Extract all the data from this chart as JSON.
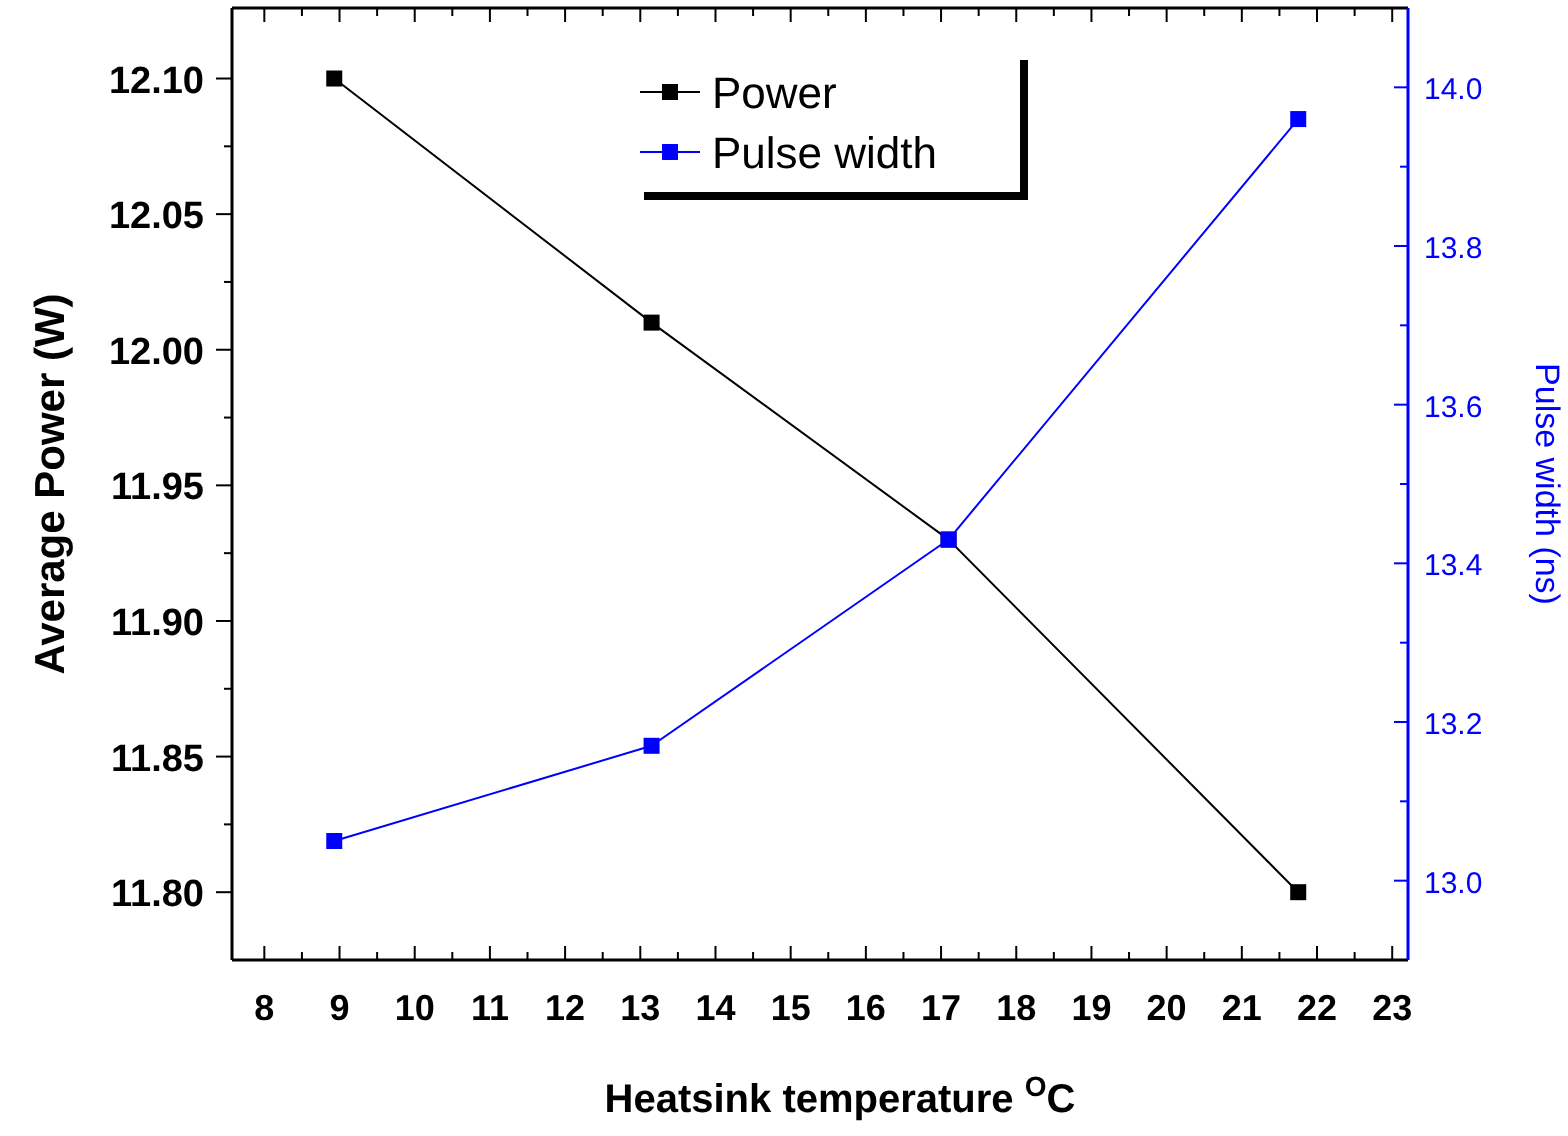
{
  "chart_data": {
    "type": "line",
    "xlabel": "Heatsink temperature $^{O}$C",
    "ylabel": "Average Power (W)",
    "y2label": "Pulse width (ns)",
    "x": [
      8.93,
      13.15,
      17.1,
      21.75
    ],
    "series": [
      {
        "name": "Power",
        "color": "#000000",
        "values": [
          12.1,
          12.01,
          11.93,
          11.8
        ]
      },
      {
        "name": "Pulse width",
        "color": "#0000ff",
        "axis": "y2",
        "values": [
          13.05,
          13.17,
          13.43,
          13.96
        ]
      }
    ],
    "xlim": [
      7.57,
      23.21
    ],
    "xticks": [
      8,
      {
        "value": 8.5,
        "label": null
      },
      9,
      {
        "value": 9.5,
        "label": null
      },
      10,
      {
        "value": 10.5,
        "label": null
      },
      11,
      {
        "value": 11.5,
        "label": null
      },
      12,
      {
        "value": 12.5,
        "label": null
      },
      13,
      {
        "value": 13.5,
        "label": null
      },
      14,
      {
        "value": 14.5,
        "label": null
      },
      15,
      {
        "value": 15.5,
        "label": null
      },
      16,
      {
        "value": 16.5,
        "label": null
      },
      17,
      {
        "value": 17.5,
        "label": null
      },
      18,
      {
        "value": 18.5,
        "label": null
      },
      19,
      {
        "value": 19.5,
        "label": null
      },
      20,
      {
        "value": 20.5,
        "label": null
      },
      21,
      {
        "value": 21.5,
        "label": null
      },
      22,
      {
        "value": 22.5,
        "label": null
      },
      23
    ],
    "ylim": [
      11.775,
      12.126
    ],
    "yticks": [
      {
        "value": 11.8,
        "label": "11.80"
      },
      {
        "value": 11.825,
        "label": null
      },
      {
        "value": 11.85,
        "label": "11.85"
      },
      {
        "value": 11.875,
        "label": null
      },
      {
        "value": 11.9,
        "label": "11.90"
      },
      {
        "value": 11.925,
        "label": null
      },
      {
        "value": 11.95,
        "label": "11.95"
      },
      {
        "value": 11.975,
        "label": null
      },
      {
        "value": 12,
        "label": "12.00"
      },
      {
        "value": 12.025,
        "label": null
      },
      {
        "value": 12.05,
        "label": "12.05"
      },
      {
        "value": 12.075,
        "label": null
      },
      {
        "value": 12.1,
        "label": "12.10"
      }
    ],
    "y2lim": [
      12.9,
      14.1
    ],
    "y2ticks": [
      {
        "value": 13,
        "label": "13.0"
      },
      {
        "value": 13.1,
        "label": null
      },
      {
        "value": 13.2,
        "label": "13.2"
      },
      {
        "value": 13.3,
        "label": null
      },
      {
        "value": 13.4,
        "label": "13.4"
      },
      {
        "value": 13.5,
        "label": null
      },
      {
        "value": 13.6,
        "label": "13.6"
      },
      {
        "value": 13.7,
        "label": null
      },
      {
        "value": 13.8,
        "label": "13.8"
      },
      {
        "value": 13.9,
        "label": null
      },
      {
        "value": 14,
        "label": "14.0"
      }
    ],
    "marker": "square",
    "legend": "top",
    "grid": false
  }
}
